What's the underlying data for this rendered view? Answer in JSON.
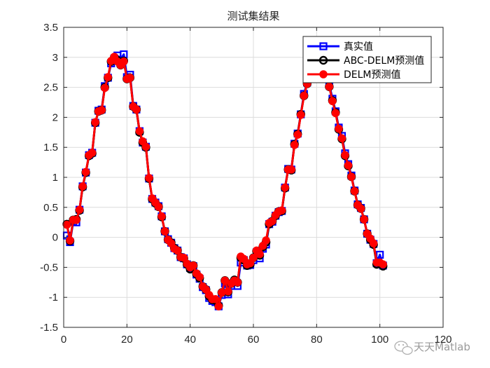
{
  "chart_data": {
    "type": "line",
    "title": "测试集结果",
    "xlabel": "",
    "ylabel": "",
    "xlim": [
      0,
      120
    ],
    "ylim": [
      -1.5,
      3.5
    ],
    "xticks": [
      0,
      20,
      40,
      60,
      80,
      100,
      120
    ],
    "yticks": [
      -1.5,
      -1,
      -0.5,
      0,
      0.5,
      1,
      1.5,
      2,
      2.5,
      3,
      3.5
    ],
    "grid": true,
    "legend_position": "top-right",
    "x": [
      1,
      2,
      3,
      4,
      5,
      6,
      7,
      8,
      9,
      10,
      11,
      12,
      13,
      14,
      15,
      16,
      17,
      18,
      19,
      20,
      21,
      22,
      23,
      24,
      25,
      26,
      27,
      28,
      29,
      30,
      31,
      32,
      33,
      34,
      35,
      36,
      37,
      38,
      39,
      40,
      41,
      42,
      43,
      44,
      45,
      46,
      47,
      48,
      49,
      50,
      51,
      52,
      53,
      54,
      55,
      56,
      57,
      58,
      59,
      60,
      61,
      62,
      63,
      64,
      65,
      66,
      67,
      68,
      69,
      70,
      71,
      72,
      73,
      74,
      75,
      76,
      77,
      78,
      79,
      80,
      81,
      82,
      83,
      84,
      85,
      86,
      87,
      88,
      89,
      90,
      91,
      92,
      93,
      94,
      95,
      96,
      97,
      98,
      99,
      100,
      101
    ],
    "series": [
      {
        "name": "真实值",
        "color": "#0000ff",
        "marker": "square",
        "values": [
          0.03,
          -0.08,
          0.26,
          0.25,
          0.46,
          0.85,
          1.08,
          1.37,
          1.41,
          1.91,
          2.11,
          2.13,
          2.52,
          2.66,
          2.9,
          2.98,
          3.03,
          2.96,
          3.05,
          2.67,
          2.71,
          2.19,
          2.13,
          1.77,
          1.58,
          1.51,
          0.98,
          0.64,
          0.58,
          0.52,
          0.35,
          0.1,
          -0.03,
          -0.09,
          -0.18,
          -0.22,
          -0.33,
          -0.35,
          -0.45,
          -0.51,
          -0.48,
          -0.62,
          -0.69,
          -0.83,
          -0.88,
          -1.01,
          -1.06,
          -1.08,
          -1.15,
          -0.96,
          -0.77,
          -0.95,
          -0.81,
          -0.74,
          -0.81,
          -0.42,
          -0.38,
          -0.47,
          -0.46,
          -0.38,
          -0.25,
          -0.35,
          -0.19,
          -0.12,
          0.22,
          0.26,
          0.36,
          0.42,
          0.44,
          0.83,
          1.14,
          1.13,
          1.56,
          1.73,
          2.05,
          2.39,
          2.58,
          2.74,
          2.78,
          2.88,
          2.81,
          2.74,
          2.73,
          2.55,
          2.31,
          2.1,
          1.83,
          1.69,
          1.4,
          1.22,
          1.03,
          0.78,
          0.55,
          0.49,
          0.3,
          0.06,
          -0.04,
          -0.11,
          -0.43,
          -0.29,
          -0.47
        ]
      },
      {
        "name": "ABC-DELM预测值",
        "color": "#000000",
        "marker": "circle",
        "values": [
          0.22,
          -0.06,
          0.29,
          0.3,
          0.45,
          0.84,
          1.08,
          1.36,
          1.4,
          1.91,
          2.1,
          2.12,
          2.5,
          2.66,
          2.93,
          3.0,
          2.95,
          2.87,
          2.94,
          2.64,
          2.66,
          2.18,
          2.13,
          1.75,
          1.58,
          1.5,
          0.98,
          0.64,
          0.57,
          0.51,
          0.34,
          0.1,
          -0.04,
          -0.09,
          -0.18,
          -0.22,
          -0.33,
          -0.35,
          -0.45,
          -0.53,
          -0.47,
          -0.61,
          -0.68,
          -0.82,
          -0.87,
          -0.98,
          -1.04,
          -1.05,
          -1.14,
          -0.92,
          -0.72,
          -0.91,
          -0.77,
          -0.71,
          -0.75,
          -0.34,
          -0.38,
          -0.47,
          -0.45,
          -0.34,
          -0.23,
          -0.3,
          -0.16,
          -0.08,
          0.22,
          0.27,
          0.36,
          0.43,
          0.44,
          0.82,
          1.13,
          1.12,
          1.55,
          1.72,
          2.05,
          2.36,
          2.56,
          2.72,
          2.76,
          2.84,
          2.76,
          2.7,
          2.68,
          2.51,
          2.28,
          2.08,
          1.8,
          1.64,
          1.36,
          1.19,
          1.01,
          0.77,
          0.54,
          0.48,
          0.3,
          0.06,
          -0.04,
          -0.12,
          -0.45,
          -0.43,
          -0.48
        ]
      },
      {
        "name": "DELM预测值",
        "color": "#ff0000",
        "marker": "circle-filled",
        "values": [
          0.21,
          -0.05,
          0.29,
          0.29,
          0.46,
          0.85,
          1.09,
          1.37,
          1.41,
          1.92,
          2.1,
          2.12,
          2.49,
          2.67,
          2.94,
          3.01,
          2.93,
          2.87,
          2.93,
          2.64,
          2.66,
          2.18,
          2.13,
          1.77,
          1.6,
          1.51,
          0.99,
          0.65,
          0.58,
          0.51,
          0.35,
          0.1,
          -0.04,
          -0.1,
          -0.19,
          -0.22,
          -0.33,
          -0.34,
          -0.44,
          -0.5,
          -0.47,
          -0.6,
          -0.66,
          -0.82,
          -0.87,
          -0.96,
          -1.03,
          -1.03,
          -1.15,
          -0.92,
          -0.72,
          -0.9,
          -0.77,
          -0.72,
          -0.75,
          -0.32,
          -0.36,
          -0.45,
          -0.43,
          -0.34,
          -0.22,
          -0.28,
          -0.14,
          -0.05,
          0.24,
          0.27,
          0.37,
          0.43,
          0.45,
          0.83,
          1.13,
          1.13,
          1.54,
          1.71,
          2.04,
          2.36,
          2.56,
          2.72,
          2.75,
          2.83,
          2.76,
          2.7,
          2.69,
          2.51,
          2.27,
          2.07,
          1.81,
          1.65,
          1.37,
          1.2,
          1.01,
          0.77,
          0.54,
          0.48,
          0.3,
          0.06,
          -0.02,
          -0.1,
          -0.42,
          -0.42,
          -0.45
        ]
      }
    ]
  },
  "watermark": {
    "text": "天天Matlab",
    "icon": "wechat-icon"
  }
}
